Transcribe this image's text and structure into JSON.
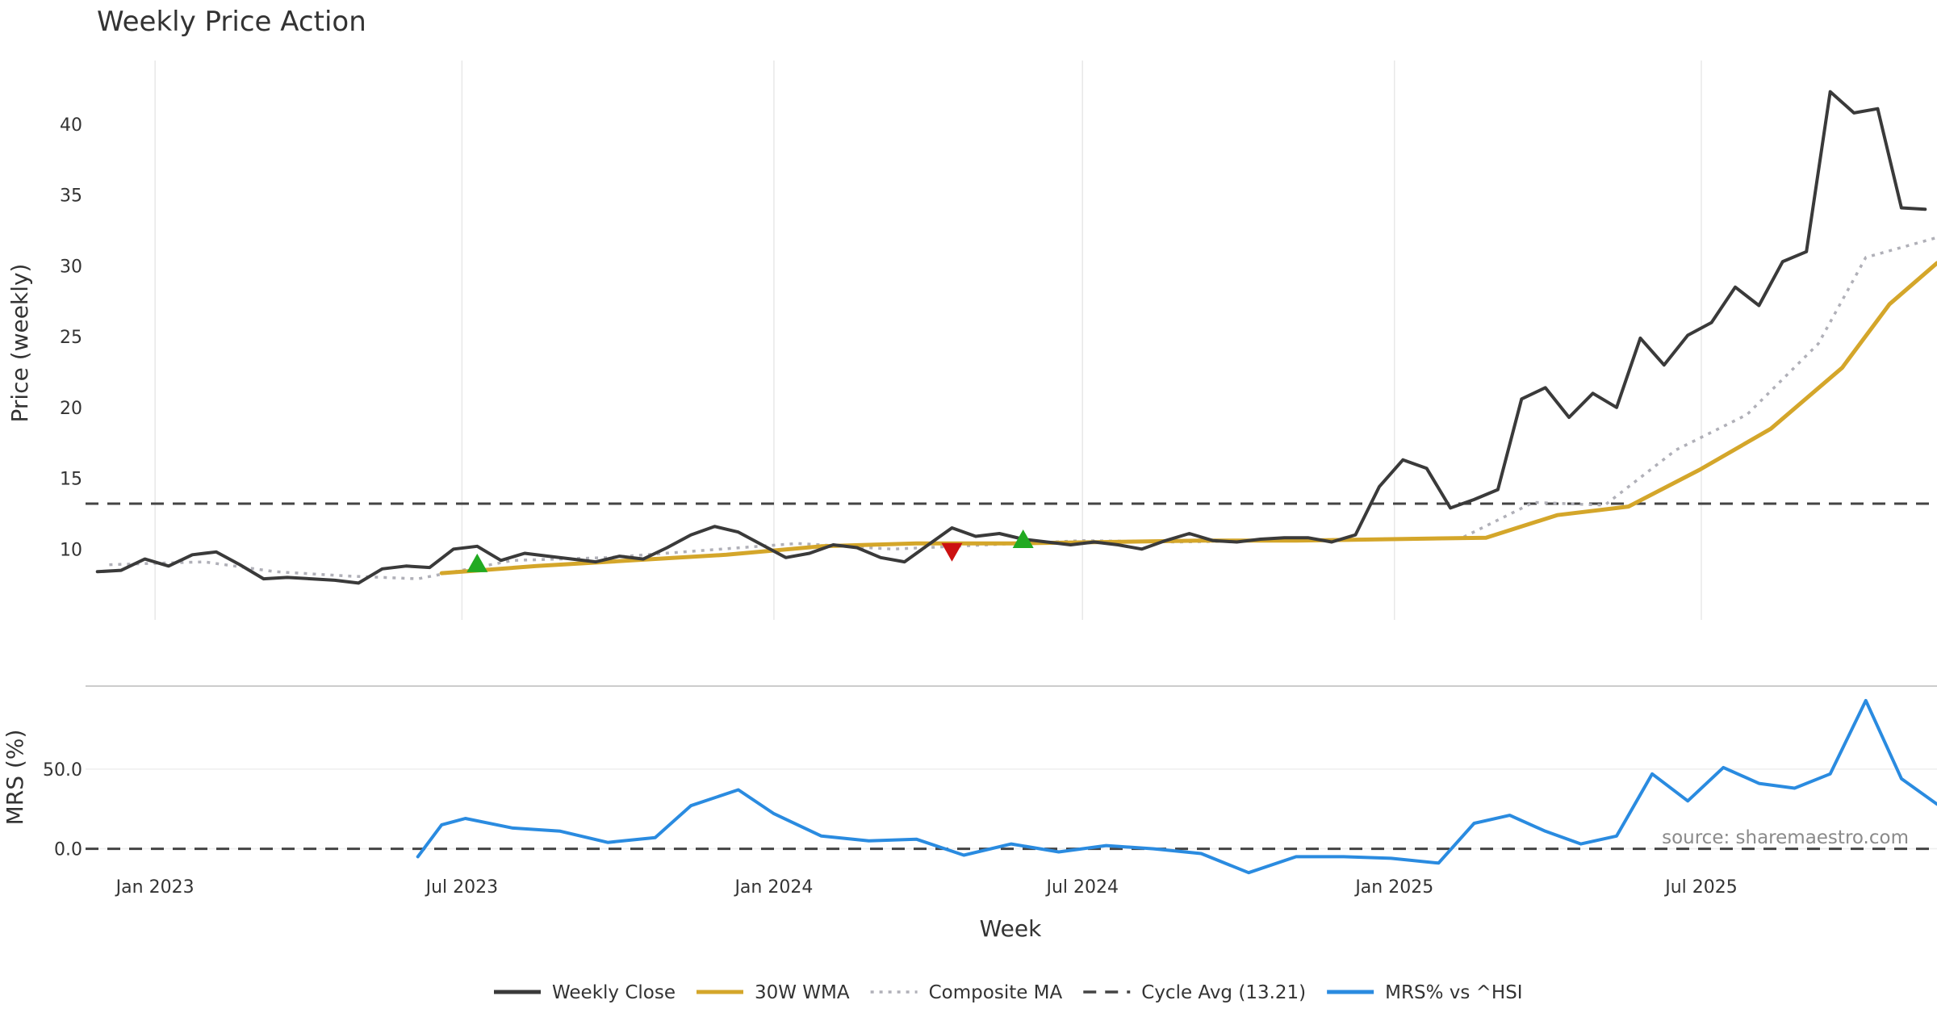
{
  "chart_data": {
    "type": "line",
    "title": "Weekly Price Action",
    "xlabel": "Week",
    "x_ticks": [
      "Jan 2023",
      "Jul 2023",
      "Jan 2024",
      "Jul 2024",
      "Jan 2025",
      "Jul 2025"
    ],
    "top_panel": {
      "ylabel": "Price (weekly)",
      "yticks": [
        "10",
        "15",
        "20",
        "25",
        "30",
        "35",
        "40"
      ],
      "ylim": [
        5.0,
        44.5
      ],
      "series": [
        {
          "name": "Weekly Close",
          "color": "#3a3a3a",
          "style": "solid",
          "x": [
            "2022-11-28",
            "2022-12-12",
            "2022-12-26",
            "2023-01-09",
            "2023-01-23",
            "2023-02-06",
            "2023-02-20",
            "2023-03-06",
            "2023-03-20",
            "2023-04-03",
            "2023-04-17",
            "2023-05-01",
            "2023-05-15",
            "2023-05-29",
            "2023-06-12",
            "2023-06-26",
            "2023-07-10",
            "2023-07-24",
            "2023-08-07",
            "2023-08-21",
            "2023-09-04",
            "2023-09-18",
            "2023-10-02",
            "2023-10-16",
            "2023-10-30",
            "2023-11-13",
            "2023-11-27",
            "2023-12-11",
            "2023-12-25",
            "2024-01-08",
            "2024-01-22",
            "2024-02-05",
            "2024-02-19",
            "2024-03-04",
            "2024-03-18",
            "2024-04-01",
            "2024-04-15",
            "2024-04-29",
            "2024-05-13",
            "2024-05-27",
            "2024-06-10",
            "2024-06-24",
            "2024-07-08",
            "2024-07-22",
            "2024-08-05",
            "2024-08-19",
            "2024-09-02",
            "2024-09-16",
            "2024-09-30",
            "2024-10-14",
            "2024-10-28",
            "2024-11-11",
            "2024-11-25",
            "2024-12-09",
            "2024-12-23",
            "2025-01-06",
            "2025-01-20",
            "2025-02-03",
            "2025-02-17",
            "2025-03-03",
            "2025-03-17",
            "2025-03-31",
            "2025-04-14",
            "2025-04-28",
            "2025-05-12",
            "2025-05-26",
            "2025-06-09",
            "2025-06-23",
            "2025-07-07",
            "2025-07-21",
            "2025-08-04",
            "2025-08-18",
            "2025-09-01",
            "2025-09-15",
            "2025-09-29",
            "2025-10-13",
            "2025-10-27",
            "2025-11-10"
          ],
          "values": [
            8.4,
            8.5,
            9.3,
            8.8,
            9.6,
            9.8,
            8.9,
            7.9,
            8.0,
            7.9,
            7.8,
            7.6,
            8.6,
            8.8,
            8.7,
            10.0,
            10.2,
            9.2,
            9.7,
            9.5,
            9.3,
            9.1,
            9.5,
            9.3,
            10.1,
            11.0,
            11.6,
            11.2,
            10.3,
            9.4,
            9.7,
            10.3,
            10.1,
            9.4,
            9.1,
            10.3,
            11.5,
            10.9,
            11.1,
            10.7,
            10.5,
            10.3,
            10.5,
            10.3,
            10.0,
            10.6,
            11.1,
            10.6,
            10.5,
            10.7,
            10.8,
            10.8,
            10.5,
            11.0,
            14.4,
            16.3,
            15.7,
            12.9,
            13.5,
            14.2,
            20.6,
            21.4,
            19.3,
            21.0,
            20.0,
            24.9,
            23.0,
            25.1,
            26.0,
            28.5,
            27.2,
            30.3,
            31.0,
            42.3,
            40.8,
            41.1,
            34.1,
            34.0
          ]
        },
        {
          "name": "30W WMA",
          "color": "#d4a62a",
          "style": "solid",
          "x": [
            "2023-06-19",
            "2023-08-14",
            "2023-10-09",
            "2023-12-04",
            "2024-01-29",
            "2024-03-25",
            "2024-05-20",
            "2024-07-15",
            "2024-09-09",
            "2024-11-04",
            "2024-12-30",
            "2025-02-24",
            "2025-04-07",
            "2025-05-19",
            "2025-06-30",
            "2025-08-11",
            "2025-09-22",
            "2025-10-20",
            "2025-11-17"
          ],
          "values": [
            8.3,
            8.8,
            9.2,
            9.6,
            10.2,
            10.4,
            10.4,
            10.5,
            10.6,
            10.6,
            10.7,
            10.8,
            12.4,
            13.0,
            15.6,
            18.5,
            22.8,
            27.3,
            30.2
          ]
        },
        {
          "name": "Composite MA",
          "color": "#b0b0b8",
          "style": "dotted",
          "x": [
            "2022-12-05",
            "2023-01-30",
            "2023-03-13",
            "2023-04-24",
            "2023-06-05",
            "2023-07-31",
            "2023-09-25",
            "2023-11-20",
            "2024-01-15",
            "2024-03-11",
            "2024-05-06",
            "2024-07-01",
            "2024-08-26",
            "2024-10-21",
            "2024-12-16",
            "2025-02-10",
            "2025-03-24",
            "2025-05-05",
            "2025-06-16",
            "2025-07-28",
            "2025-09-08",
            "2025-10-06",
            "2025-11-17"
          ],
          "values": [
            8.9,
            9.1,
            8.4,
            8.1,
            7.9,
            9.2,
            9.4,
            9.9,
            10.4,
            10.0,
            10.3,
            10.6,
            10.5,
            10.6,
            10.7,
            10.8,
            13.3,
            13.1,
            17.0,
            19.5,
            24.5,
            30.6,
            32.0
          ]
        },
        {
          "name": "Cycle Avg (13.21)",
          "color": "#444444",
          "style": "dashed",
          "x": [
            "2022-11-21",
            "2025-11-17"
          ],
          "values": [
            13.21,
            13.21
          ]
        }
      ],
      "signals": [
        {
          "type": "buy",
          "color": "#22aa22",
          "x": "2023-07-10",
          "y": 9.0
        },
        {
          "type": "sell",
          "color": "#cc1111",
          "x": "2024-04-15",
          "y": 9.8
        },
        {
          "type": "buy",
          "color": "#22aa22",
          "x": "2024-05-27",
          "y": 10.7
        }
      ]
    },
    "bottom_panel": {
      "ylabel": "MRS (%)",
      "yticks": [
        "0.0",
        "50.0"
      ],
      "ylim": [
        -22,
        96
      ],
      "series": [
        {
          "name": "MRS% vs ^HSI",
          "color": "#2a8be0",
          "style": "solid",
          "x": [
            "2023-06-05",
            "2023-06-19",
            "2023-07-03",
            "2023-07-31",
            "2023-08-28",
            "2023-09-25",
            "2023-10-23",
            "2023-11-13",
            "2023-12-11",
            "2024-01-01",
            "2024-01-29",
            "2024-02-26",
            "2024-03-25",
            "2024-04-22",
            "2024-05-20",
            "2024-06-17",
            "2024-07-15",
            "2024-08-12",
            "2024-09-09",
            "2024-10-07",
            "2024-11-04",
            "2024-12-02",
            "2024-12-30",
            "2025-01-27",
            "2025-02-17",
            "2025-03-10",
            "2025-03-31",
            "2025-04-21",
            "2025-05-12",
            "2025-06-02",
            "2025-06-23",
            "2025-07-14",
            "2025-08-04",
            "2025-08-25",
            "2025-09-15",
            "2025-10-06",
            "2025-10-27",
            "2025-11-17"
          ],
          "values": [
            -5,
            15,
            19,
            13,
            11,
            4,
            7,
            27,
            37,
            22,
            8,
            5,
            6,
            -4,
            3,
            -2,
            2,
            0,
            -3,
            -15,
            -5,
            -5,
            -6,
            -9,
            16,
            21,
            11,
            3,
            8,
            47,
            30,
            51,
            41,
            38,
            47,
            93,
            44,
            28
          ]
        },
        {
          "name": "",
          "color": "#444444",
          "style": "dashed",
          "x": [
            "2022-11-21",
            "2025-11-17"
          ],
          "values": [
            0,
            0
          ]
        }
      ]
    },
    "legend": [
      {
        "label": "Weekly Close",
        "color": "#3a3a3a",
        "style": "solid"
      },
      {
        "label": "30W WMA",
        "color": "#d4a62a",
        "style": "solid"
      },
      {
        "label": "Composite MA",
        "color": "#b0b0b8",
        "style": "dotted"
      },
      {
        "label": "Cycle Avg (13.21)",
        "color": "#444444",
        "style": "dashed"
      },
      {
        "label": "MRS% vs ^HSI",
        "color": "#2a8be0",
        "style": "solid"
      }
    ],
    "legend_position": "bottom-center",
    "annotation": "source: sharemaestro.com",
    "grid": true
  }
}
